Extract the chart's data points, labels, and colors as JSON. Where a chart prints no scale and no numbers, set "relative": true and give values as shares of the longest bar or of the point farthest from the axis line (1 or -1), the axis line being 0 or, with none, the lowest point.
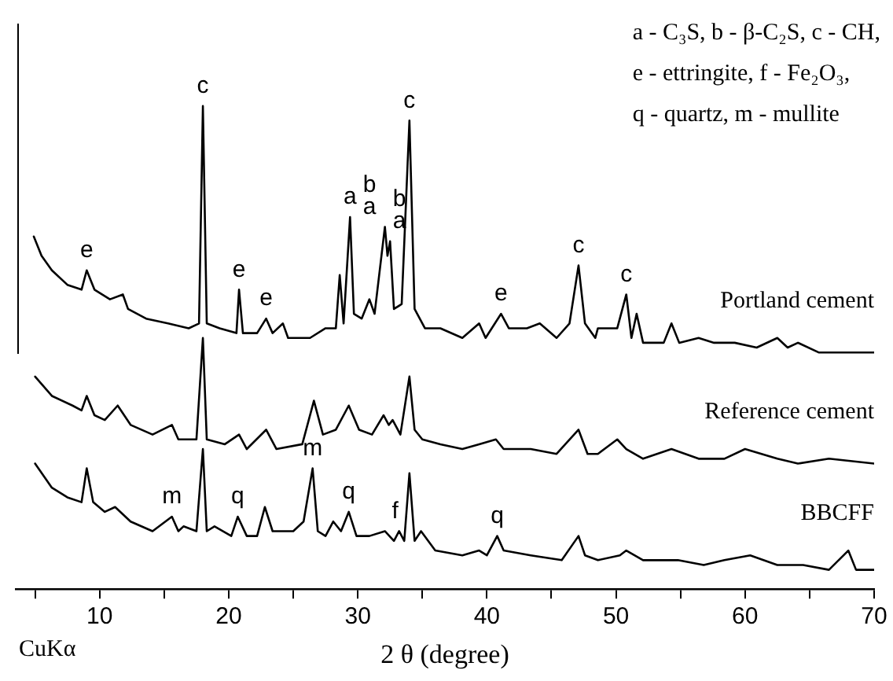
{
  "chart_data": {
    "type": "line",
    "xlabel": "2 θ (degree)",
    "relative": true,
    "marker": "none",
    "legend": false,
    "xlim": [
      3.5,
      70
    ],
    "xticks": [
      {
        "value": 5,
        "label": null
      },
      10,
      {
        "value": 15,
        "label": null
      },
      20,
      {
        "value": 25,
        "label": null
      },
      30,
      {
        "value": 35,
        "label": null
      },
      40,
      {
        "value": 45,
        "label": null
      },
      50,
      {
        "value": 55,
        "label": null
      },
      60,
      {
        "value": 65,
        "label": null
      },
      70
    ],
    "series": [
      {
        "name": "Portland cement",
        "color": "#000000",
        "x": [
          4.9,
          5.5,
          6.3,
          7.5,
          8.6,
          9.0,
          9.6,
          10.8,
          11.8,
          12.2,
          13.6,
          15.3,
          16.9,
          17.7,
          18.0,
          18.3,
          19.3,
          20.6,
          20.8,
          21.1,
          22.2,
          22.9,
          23.4,
          24.2,
          24.6,
          26.3,
          27.5,
          28.3,
          28.6,
          28.9,
          29.4,
          29.7,
          30.3,
          30.9,
          31.3,
          32.1,
          32.3,
          32.5,
          32.8,
          33.4,
          34.0,
          34.4,
          35.2,
          36.4,
          38.1,
          39.4,
          39.9,
          41.1,
          41.7,
          43.1,
          44.1,
          45.4,
          46.4,
          47.1,
          47.6,
          48.4,
          48.6,
          50.1,
          50.8,
          51.2,
          51.6,
          52.1,
          53.7,
          54.3,
          54.9,
          56.4,
          57.6,
          59.2,
          60.9,
          62.5,
          63.3,
          64.1,
          65.7,
          67.8,
          70.0
        ],
        "values": [
          0.73,
          0.69,
          0.66,
          0.63,
          0.62,
          0.66,
          0.62,
          0.6,
          0.61,
          0.58,
          0.56,
          0.55,
          0.54,
          0.55,
          1.0,
          0.55,
          0.54,
          0.53,
          0.62,
          0.53,
          0.53,
          0.56,
          0.53,
          0.55,
          0.52,
          0.52,
          0.54,
          0.54,
          0.65,
          0.55,
          0.77,
          0.57,
          0.56,
          0.6,
          0.57,
          0.75,
          0.69,
          0.72,
          0.58,
          0.59,
          0.97,
          0.58,
          0.54,
          0.54,
          0.52,
          0.55,
          0.52,
          0.57,
          0.54,
          0.54,
          0.55,
          0.52,
          0.55,
          0.67,
          0.55,
          0.52,
          0.54,
          0.54,
          0.61,
          0.52,
          0.57,
          0.51,
          0.51,
          0.55,
          0.51,
          0.52,
          0.51,
          0.51,
          0.5,
          0.52,
          0.5,
          0.51,
          0.49,
          0.49,
          0.49
        ]
      },
      {
        "name": "Reference cement",
        "color": "#000000",
        "x": [
          5.0,
          6.3,
          7.9,
          8.6,
          9.0,
          9.6,
          10.4,
          11.4,
          12.4,
          14.1,
          15.6,
          16.1,
          16.9,
          17.5,
          18.0,
          18.3,
          19.7,
          20.8,
          21.4,
          22.9,
          23.7,
          25.7,
          26.6,
          27.3,
          28.3,
          29.3,
          30.1,
          31.1,
          32.0,
          32.4,
          32.7,
          33.3,
          34.0,
          34.4,
          35.0,
          36.4,
          38.1,
          39.4,
          40.7,
          41.3,
          43.4,
          45.4,
          47.1,
          47.8,
          48.6,
          50.1,
          50.8,
          52.1,
          54.3,
          56.4,
          58.4,
          60.0,
          62.5,
          64.1,
          66.5,
          70.0
        ],
        "values": [
          0.44,
          0.4,
          0.38,
          0.37,
          0.4,
          0.36,
          0.35,
          0.38,
          0.34,
          0.32,
          0.34,
          0.31,
          0.31,
          0.31,
          0.52,
          0.31,
          0.3,
          0.32,
          0.29,
          0.33,
          0.29,
          0.3,
          0.39,
          0.32,
          0.33,
          0.38,
          0.33,
          0.32,
          0.36,
          0.34,
          0.35,
          0.32,
          0.44,
          0.33,
          0.31,
          0.3,
          0.29,
          0.3,
          0.31,
          0.29,
          0.29,
          0.28,
          0.33,
          0.28,
          0.28,
          0.31,
          0.29,
          0.27,
          0.29,
          0.27,
          0.27,
          0.29,
          0.27,
          0.26,
          0.27,
          0.26
        ]
      },
      {
        "name": "BBCFF",
        "color": "#000000",
        "x": [
          5.0,
          6.3,
          7.5,
          8.6,
          9.0,
          9.5,
          10.4,
          11.2,
          12.4,
          14.1,
          15.6,
          16.1,
          16.5,
          17.5,
          18.0,
          18.3,
          18.9,
          20.2,
          20.7,
          21.4,
          22.2,
          22.8,
          23.4,
          25.0,
          25.8,
          26.5,
          26.9,
          27.5,
          28.1,
          28.7,
          29.3,
          29.9,
          30.9,
          32.1,
          32.8,
          33.2,
          33.6,
          34.0,
          34.4,
          34.9,
          36.0,
          38.1,
          39.4,
          40.0,
          40.8,
          41.3,
          43.4,
          45.8,
          47.1,
          47.6,
          48.6,
          50.3,
          50.8,
          52.1,
          54.8,
          56.8,
          58.4,
          60.4,
          62.5,
          64.5,
          66.5,
          68.0,
          68.6,
          70.0
        ],
        "values": [
          0.26,
          0.21,
          0.19,
          0.18,
          0.25,
          0.18,
          0.16,
          0.17,
          0.14,
          0.12,
          0.15,
          0.12,
          0.13,
          0.12,
          0.29,
          0.12,
          0.13,
          0.11,
          0.15,
          0.11,
          0.11,
          0.17,
          0.12,
          0.12,
          0.14,
          0.25,
          0.12,
          0.11,
          0.14,
          0.12,
          0.16,
          0.11,
          0.11,
          0.12,
          0.1,
          0.12,
          0.1,
          0.24,
          0.1,
          0.12,
          0.08,
          0.07,
          0.08,
          0.07,
          0.11,
          0.08,
          0.07,
          0.06,
          0.11,
          0.07,
          0.06,
          0.07,
          0.08,
          0.06,
          0.06,
          0.05,
          0.06,
          0.07,
          0.05,
          0.05,
          0.04,
          0.08,
          0.04,
          0.04
        ]
      }
    ],
    "annotations": [
      {
        "text": "e",
        "x": 9.0,
        "y": 0.66
      },
      {
        "text": "c",
        "x": 18.0,
        "y": 1.0
      },
      {
        "text": "e",
        "x": 20.8,
        "y": 0.62
      },
      {
        "text": "e",
        "x": 22.9,
        "y": 0.56
      },
      {
        "text": "a",
        "x": 29.4,
        "y": 0.77
      },
      {
        "text": "a",
        "x": 32.1,
        "y": 0.75
      },
      {
        "text": "b",
        "x": 32.1,
        "y": 0.75
      },
      {
        "text": "a",
        "x": 32.5,
        "y": 0.72
      },
      {
        "text": "b",
        "x": 32.5,
        "y": 0.72
      },
      {
        "text": "c",
        "x": 34.0,
        "y": 0.97
      },
      {
        "text": "e",
        "x": 41.1,
        "y": 0.57
      },
      {
        "text": "c",
        "x": 47.1,
        "y": 0.67
      },
      {
        "text": "c",
        "x": 50.8,
        "y": 0.61
      },
      {
        "text": "m",
        "x": 15.6,
        "y": 0.15
      },
      {
        "text": "q",
        "x": 20.7,
        "y": 0.15
      },
      {
        "text": "m",
        "x": 26.5,
        "y": 0.25
      },
      {
        "text": "q",
        "x": 29.3,
        "y": 0.16
      },
      {
        "text": "f",
        "x": 32.9,
        "y": 0.12
      },
      {
        "text": "q",
        "x": 40.8,
        "y": 0.11
      },
      "a - C₃S,  b - β-C₂S,  c - CH,",
      "e - ettringite,  f - Fe₂O₃,",
      "q - quartz,  m - mullite",
      "CuKα"
    ]
  }
}
